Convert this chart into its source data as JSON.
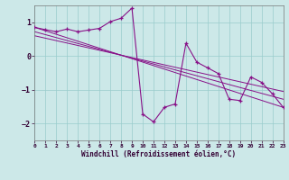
{
  "background_color": "#cce8e8",
  "plot_bg_color": "#cce8e8",
  "grid_color": "#99cccc",
  "line_color": "#881188",
  "x_label": "Windchill (Refroidissement éolien,°C)",
  "xlim": [
    0,
    23
  ],
  "ylim": [
    -2.5,
    1.5
  ],
  "yticks": [
    -2,
    -1,
    0,
    1
  ],
  "xticks": [
    0,
    1,
    2,
    3,
    4,
    5,
    6,
    7,
    8,
    9,
    10,
    11,
    12,
    13,
    14,
    15,
    16,
    17,
    18,
    19,
    20,
    21,
    22,
    23
  ],
  "main_series_x": [
    0,
    1,
    2,
    3,
    4,
    5,
    6,
    7,
    8,
    9,
    10,
    11,
    12,
    13,
    14,
    15,
    16,
    17,
    18,
    19,
    20,
    21,
    22,
    23
  ],
  "main_series_y": [
    0.85,
    0.78,
    0.72,
    0.8,
    0.72,
    0.77,
    0.82,
    1.02,
    1.12,
    1.42,
    -1.72,
    -1.95,
    -1.52,
    -1.42,
    0.38,
    -0.18,
    -0.35,
    -0.52,
    -1.28,
    -1.32,
    -0.62,
    -0.78,
    -1.12,
    -1.52
  ],
  "reg_lines": [
    {
      "x": [
        0,
        23
      ],
      "y": [
        0.85,
        -1.52
      ]
    },
    {
      "x": [
        0,
        23
      ],
      "y": [
        0.72,
        -1.28
      ]
    },
    {
      "x": [
        0,
        23
      ],
      "y": [
        0.6,
        -1.05
      ]
    }
  ],
  "spine_color": "#777777",
  "tick_color": "#330033",
  "label_color": "#330033"
}
